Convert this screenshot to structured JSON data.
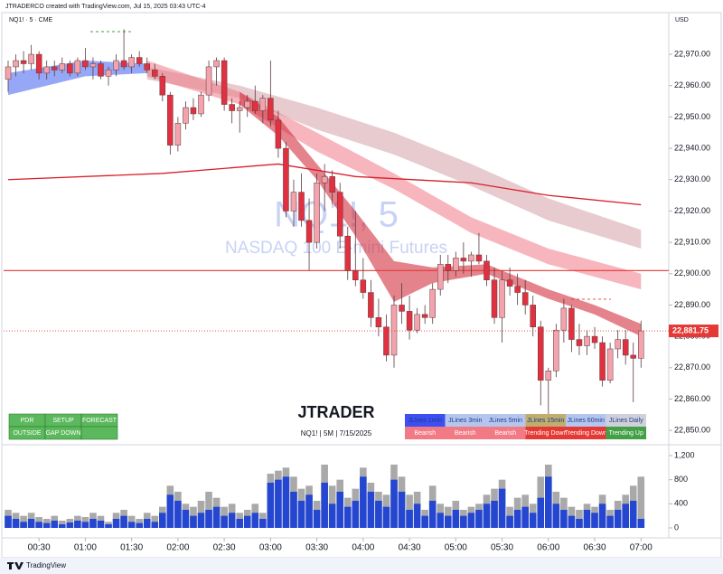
{
  "header": {
    "credit": "JTRADERCO created with TradingView.com, Jul 15, 2025 03:43 UTC-4",
    "footer": "TradingView"
  },
  "chart_data": [
    {
      "type": "candlestick",
      "symbol_label": "NQ1! · 5 · CME",
      "currency": "USD",
      "watermark_title": "NQ1!, 5",
      "watermark_subtitle": "NASDAQ 100 E-mini Futures",
      "brand": "JTRADER",
      "brand_subtitle": "NQ1! | 5M | 7/15/2025",
      "up_color": "#f4a3ad",
      "down_color": "#e1303f",
      "open": [
        22962,
        22966,
        22968,
        22967,
        22970,
        22964,
        22966,
        22965,
        22967,
        22964,
        22968,
        22966,
        22967,
        22963,
        22965,
        22968,
        22966,
        22969,
        22967,
        22965,
        22963,
        22957,
        22941,
        22948,
        22953,
        22951,
        22957,
        22966,
        22968,
        22954,
        22952,
        22953,
        22955,
        22952,
        22956,
        22949,
        22940,
        22920,
        22926,
        22917,
        22910,
        22929,
        22931,
        22926,
        22912,
        22901,
        22898,
        22894,
        22886,
        22883,
        22874,
        22890,
        22888,
        22882,
        22887,
        22886,
        22895,
        22903,
        22901,
        22905,
        22904,
        22906,
        22904,
        22898,
        22886,
        22898,
        22896,
        22894,
        22890,
        22883,
        22866,
        22869,
        22882,
        22889,
        22879,
        22877,
        22880,
        22878,
        22866,
        22876,
        22879,
        22874,
        22873
      ],
      "high": [
        22968,
        22970,
        22971,
        22973,
        22971,
        22968,
        22968,
        22969,
        22968,
        22969,
        22972,
        22969,
        22968,
        22966,
        22970,
        22978,
        22970,
        22971,
        22969,
        22967,
        22964,
        22958,
        22950,
        22955,
        22956,
        22958,
        22968,
        22969,
        22969,
        22956,
        22955,
        22957,
        22960,
        22957,
        22968,
        22952,
        22942,
        22930,
        22932,
        22924,
        22932,
        22935,
        22933,
        22929,
        22915,
        22920,
        22905,
        22898,
        22892,
        22887,
        22893,
        22897,
        22893,
        22889,
        22890,
        22897,
        22906,
        22906,
        22907,
        22910,
        22907,
        22913,
        22906,
        22902,
        22901,
        22902,
        22900,
        22898,
        22893,
        22885,
        22870,
        22884,
        22892,
        22890,
        22884,
        22882,
        22883,
        22880,
        22878,
        22882,
        22882,
        22878,
        22885
      ],
      "low": [
        22958,
        22963,
        22964,
        22965,
        22962,
        22962,
        22963,
        22964,
        22963,
        22963,
        22965,
        22962,
        22962,
        22960,
        22963,
        22965,
        22964,
        22966,
        22964,
        22962,
        22955,
        22938,
        22939,
        22946,
        22949,
        22950,
        22955,
        22960,
        22952,
        22948,
        22945,
        22950,
        22951,
        22948,
        22947,
        22937,
        22918,
        22915,
        22915,
        22901,
        22908,
        22920,
        22922,
        22908,
        22898,
        22896,
        22892,
        22883,
        22880,
        22872,
        22870,
        22884,
        22879,
        22881,
        22884,
        22884,
        22893,
        22897,
        22899,
        22900,
        22899,
        22903,
        22896,
        22884,
        22878,
        22893,
        22890,
        22887,
        22880,
        22858,
        22850,
        22867,
        22878,
        22875,
        22874,
        22874,
        22876,
        22864,
        22865,
        22873,
        22871,
        22859,
        22870
      ],
      "close": [
        22966,
        22968,
        22967,
        22970,
        22964,
        22966,
        22965,
        22967,
        22964,
        22968,
        22966,
        22967,
        22963,
        22965,
        22968,
        22966,
        22969,
        22967,
        22965,
        22963,
        22957,
        22941,
        22948,
        22953,
        22951,
        22957,
        22966,
        22968,
        22954,
        22952,
        22953,
        22955,
        22952,
        22956,
        22949,
        22940,
        22920,
        22926,
        22917,
        22910,
        22929,
        22931,
        22926,
        22912,
        22901,
        22898,
        22894,
        22886,
        22883,
        22874,
        22890,
        22888,
        22882,
        22887,
        22886,
        22895,
        22903,
        22901,
        22905,
        22904,
        22906,
        22904,
        22898,
        22886,
        22898,
        22896,
        22894,
        22890,
        22883,
        22866,
        22869,
        22882,
        22889,
        22879,
        22877,
        22880,
        22878,
        22866,
        22876,
        22879,
        22874,
        22873,
        22881.75
      ],
      "last_price": {
        "value": 22881.75,
        "label": "22,881.75"
      },
      "last_price_color": "#e53935",
      "bands": [
        {
          "color": "#3f5ff0",
          "opacity": 0.55,
          "x": [
            0,
            10,
            18
          ],
          "upper": [
            22964,
            22968,
            22967
          ],
          "lower": [
            22957,
            22963,
            22964
          ]
        },
        {
          "color": "#c98c94",
          "opacity": 0.45,
          "x": [
            18,
            30,
            40,
            50,
            60,
            70,
            82
          ],
          "upper": [
            22966,
            22960,
            22953,
            22945,
            22935,
            22924,
            22914
          ],
          "lower": [
            22962,
            22956,
            22946,
            22938,
            22928,
            22917,
            22908
          ]
        },
        {
          "color": "#f07a86",
          "opacity": 0.55,
          "x": [
            18,
            30,
            40,
            50,
            60,
            70,
            82
          ],
          "upper": [
            22968,
            22958,
            22945,
            22932,
            22918,
            22908,
            22900
          ],
          "lower": [
            22963,
            22954,
            22939,
            22927,
            22913,
            22903,
            22895
          ]
        },
        {
          "color": "#d2303f",
          "opacity": 0.6,
          "x": [
            30,
            35,
            40,
            45,
            50,
            55,
            62,
            70,
            76,
            82
          ],
          "upper": [
            22958,
            22950,
            22935,
            22920,
            22904,
            22902,
            22903,
            22895,
            22890,
            22884
          ],
          "lower": [
            22954,
            22944,
            22930,
            22912,
            22891,
            22897,
            22900,
            22892,
            22887,
            22880
          ]
        }
      ],
      "lines": [
        {
          "color": "#d81f2a",
          "x": [
            0,
            20,
            35,
            45,
            60,
            70,
            82
          ],
          "values": [
            22930,
            22932,
            22935,
            22931,
            22929,
            22925,
            22922
          ]
        }
      ],
      "hlines": [
        {
          "value": 22901,
          "color": "#e53935"
        }
      ],
      "ylim": [
        22846,
        22983
      ],
      "yticks": [
        {
          "value": 22850,
          "label": "22,850.00"
        },
        {
          "value": 22860,
          "label": "22,860.00"
        },
        {
          "value": 22870,
          "label": "22,870.00"
        },
        {
          "value": 22880,
          "label": "22,880.00"
        },
        {
          "value": 22890,
          "label": "22,890.00"
        },
        {
          "value": 22900,
          "label": "22,900.00"
        },
        {
          "value": 22910,
          "label": "22,910.00"
        },
        {
          "value": 22920,
          "label": "22,920.00"
        },
        {
          "value": 22930,
          "label": "22,930.00"
        },
        {
          "value": 22940,
          "label": "22,940.00"
        },
        {
          "value": 22950,
          "label": "22,950.00"
        },
        {
          "value": 22960,
          "label": "22,960.00"
        },
        {
          "value": 22970,
          "label": "22,970.00"
        }
      ],
      "setup_table": {
        "header": [
          "PDR",
          "SETUP",
          "FORECAST"
        ],
        "row": [
          "OUTSIDE",
          "GAP DOWN"
        ]
      },
      "jlines_table": {
        "header": [
          "JLines 1min",
          "JLines 3min",
          "JLines 5min",
          "JLines 15min",
          "JLines 60min",
          "JLines Daily"
        ],
        "header_colors": [
          "#3d4ff0",
          "#b5c6ee",
          "#b5c6ee",
          "#bfae6e",
          "#b5c6ee",
          "#cfd0da"
        ],
        "row": [
          "Bearish",
          "Bearish",
          "Bearish",
          "Trending Down",
          "Trending Down",
          "Trending Up"
        ],
        "row_colors": [
          "#f17a85",
          "#f17a85",
          "#f17a85",
          "#e53935",
          "#e53935",
          "#43a047"
        ]
      }
    },
    {
      "type": "bar",
      "series": [
        {
          "color": "#a9a9a9",
          "values": [
            300,
            250,
            200,
            250,
            180,
            150,
            200,
            120,
            150,
            200,
            180,
            250,
            200,
            100,
            250,
            300,
            200,
            150,
            250,
            200,
            350,
            700,
            600,
            400,
            350,
            450,
            600,
            500,
            350,
            400,
            250,
            300,
            400,
            250,
            900,
            950,
            1000,
            850,
            650,
            700,
            450,
            1050,
            700,
            800,
            500,
            650,
            1000,
            750,
            600,
            550,
            1050,
            850,
            550,
            600,
            300,
            700,
            400,
            350,
            450,
            300,
            350,
            400,
            550,
            650,
            800,
            350,
            500,
            550,
            400,
            850,
            1050,
            600,
            500,
            350,
            300,
            400,
            350,
            550,
            300,
            450,
            550,
            700,
            850
          ]
        },
        {
          "color": "#2446d0",
          "values": [
            200,
            150,
            100,
            150,
            100,
            80,
            120,
            60,
            90,
            120,
            100,
            150,
            120,
            60,
            150,
            200,
            100,
            80,
            150,
            100,
            250,
            550,
            450,
            300,
            200,
            250,
            300,
            350,
            200,
            250,
            150,
            200,
            250,
            150,
            750,
            800,
            850,
            600,
            450,
            550,
            300,
            750,
            400,
            600,
            350,
            450,
            850,
            600,
            450,
            350,
            800,
            600,
            300,
            400,
            200,
            450,
            250,
            200,
            300,
            200,
            250,
            300,
            400,
            450,
            650,
            200,
            300,
            350,
            250,
            500,
            850,
            400,
            300,
            200,
            150,
            300,
            250,
            400,
            200,
            300,
            400,
            450,
            150
          ]
        }
      ],
      "ylim": [
        0,
        1335
      ],
      "yticks": [
        0,
        400,
        800,
        {
          "value": 1200,
          "label": "1,200"
        }
      ],
      "xticks": [
        {
          "value": 4,
          "label": "00:30"
        },
        {
          "value": 10,
          "label": "01:00"
        },
        {
          "value": 16,
          "label": "01:30"
        },
        {
          "value": 22,
          "label": "02:00"
        },
        {
          "value": 28,
          "label": "02:30"
        },
        {
          "value": 34,
          "label": "03:00"
        },
        {
          "value": 40,
          "label": "03:30"
        },
        {
          "value": 46,
          "label": "04:00"
        },
        {
          "value": 52,
          "label": "04:30"
        },
        {
          "value": 58,
          "label": "05:00"
        },
        {
          "value": 64,
          "label": "05:30"
        },
        {
          "value": 70,
          "label": "06:00"
        },
        {
          "value": 76,
          "label": "06:30"
        },
        {
          "value": 82,
          "label": "07:00"
        }
      ]
    }
  ]
}
